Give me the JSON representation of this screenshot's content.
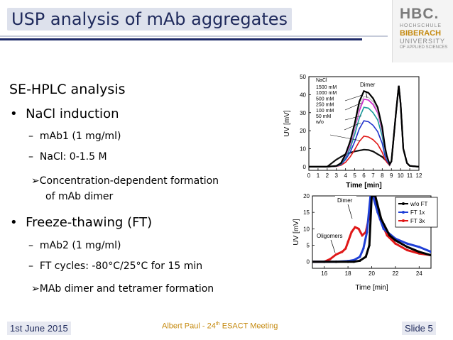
{
  "header": {
    "title": "USP analysis of mAb aggregates"
  },
  "logo": {
    "name": "HBC.",
    "line1": "HOCHSCHULE",
    "line2": "BIBERACH",
    "line3": "UNIVERSITY",
    "line4": "OF APPLIED SCIENCES"
  },
  "content": {
    "heading": "SE-HPLC analysis",
    "bullet1": "NaCl induction",
    "b1_sub1": "mAb1 (1 mg/ml)",
    "b1_sub2": "NaCl: 0-1.5 M",
    "b1_res_l1": "Concentration-dependent formation",
    "b1_res_l2": "of mAb dimer",
    "bullet2": "Freeze-thawing (FT)",
    "b2_sub1": "mAb2 (1 mg/ml)",
    "b2_sub2": "FT cycles: -80°C/25°C for 15 min",
    "b2_res": "MAb dimer and tetramer formation"
  },
  "footer": {
    "date": "1st June 2015",
    "presenter": "Albert Paul - 24",
    "presenter_sup": "th",
    "presenter_tail": " ESACT Meeting",
    "slide": "Slide 5"
  },
  "colors": {
    "title_navy": "#1f2a5c",
    "accent_gold": "#c58a10"
  },
  "chart_data": [
    {
      "type": "line",
      "xlabel": "Time [min]",
      "ylabel": "UV [mV]",
      "xlim": [
        0,
        12
      ],
      "ylim": [
        -2,
        50
      ],
      "xticks": [
        "0",
        "1",
        "2",
        "3",
        "4",
        "5",
        "6",
        "7",
        "8",
        "9",
        "10",
        "11",
        "12"
      ],
      "yticks": [
        "0",
        "10",
        "20",
        "30",
        "40",
        "50"
      ],
      "legend_title": "NaCl",
      "annotation": "Dimer",
      "series": [
        {
          "name": "1500 mM",
          "color": "#000000",
          "x": [
            0,
            1,
            2,
            3,
            3.5,
            4,
            4.5,
            5,
            5.5,
            6,
            6.5,
            7,
            7.5,
            8,
            8.3,
            8.5,
            8.8,
            9,
            9.5,
            9.8,
            10,
            10.3,
            10.7,
            11,
            12
          ],
          "y": [
            0,
            0,
            0,
            0.5,
            2,
            7,
            14,
            24,
            36,
            42,
            41,
            38,
            33,
            22,
            11,
            6,
            1.5,
            3,
            30,
            45,
            35,
            10,
            2,
            0.5,
            0
          ]
        },
        {
          "name": "1000 mM",
          "color": "#c8c8c8",
          "x": [
            0,
            1,
            2,
            3,
            3.5,
            4,
            4.5,
            5,
            5.5,
            6,
            6.5,
            7,
            7.5,
            8,
            8.3,
            8.5,
            8.8,
            9,
            9.5,
            9.8,
            10,
            10.3,
            10.7,
            11,
            12
          ],
          "y": [
            0,
            0,
            0,
            0.4,
            2,
            6.5,
            13,
            22,
            33,
            39,
            38.5,
            36,
            31,
            21,
            10,
            5.5,
            1.5,
            3,
            30,
            45,
            35,
            10,
            2,
            0.5,
            0
          ]
        },
        {
          "name": "500 mM",
          "color": "#cc22cc",
          "x": [
            0,
            1,
            2,
            3,
            3.5,
            4,
            4.5,
            5,
            5.5,
            6,
            6.5,
            7,
            7.5,
            8,
            8.3,
            8.5,
            8.8,
            9,
            9.5,
            9.8,
            10,
            10.3,
            10.7,
            11,
            12
          ],
          "y": [
            0,
            0,
            0,
            0.4,
            2,
            6,
            12,
            21,
            31,
            37.5,
            37,
            34.5,
            30,
            20,
            9.5,
            5,
            1.5,
            3,
            30,
            45,
            35,
            10,
            2,
            0.5,
            0
          ]
        },
        {
          "name": "250 mM",
          "color": "#1a9a9a",
          "x": [
            0,
            1,
            2,
            3,
            3.5,
            4,
            4.5,
            5,
            5.5,
            6,
            6.5,
            7,
            7.5,
            8,
            8.3,
            8.5,
            8.8,
            9,
            9.5,
            9.8,
            10,
            10.3,
            10.7,
            11,
            12
          ],
          "y": [
            0,
            0,
            0,
            0.3,
            1.5,
            5,
            10,
            18,
            27,
            33,
            32.5,
            30,
            26,
            17,
            8,
            4.5,
            1.2,
            3,
            30,
            45,
            35,
            10,
            2,
            0.5,
            0
          ]
        },
        {
          "name": "100 mM",
          "color": "#2233cc",
          "x": [
            0,
            1,
            2,
            3,
            3.5,
            4,
            4.5,
            5,
            5.5,
            6,
            6.5,
            7,
            7.5,
            8,
            8.3,
            8.5,
            8.8,
            9,
            9.5,
            9.8,
            10,
            10.3,
            10.7,
            11,
            12
          ],
          "y": [
            0,
            0,
            0,
            0.3,
            1.2,
            4,
            8,
            14,
            21,
            25.5,
            25,
            23,
            19.5,
            13,
            6,
            3.5,
            1,
            3,
            30,
            45,
            35,
            10,
            2,
            0.5,
            0
          ]
        },
        {
          "name": "50 mM",
          "color": "#e01818",
          "x": [
            0,
            1,
            2,
            3,
            3.5,
            4,
            4.5,
            5,
            5.5,
            6,
            6.5,
            7,
            7.5,
            8,
            8.3,
            8.5,
            8.8,
            9,
            9.5,
            9.8,
            10,
            10.3,
            10.7,
            11,
            12
          ],
          "y": [
            0,
            0,
            0,
            0.2,
            0.8,
            2.5,
            5.5,
            9.5,
            14,
            17,
            16.5,
            15,
            12.5,
            8,
            4,
            2.5,
            0.8,
            3,
            30,
            45,
            35,
            10,
            2,
            0.5,
            0
          ]
        },
        {
          "name": "w/o",
          "color": "#111111",
          "x": [
            0,
            1,
            2,
            3,
            4,
            5,
            5.5,
            6,
            6.5,
            7,
            7.5,
            8,
            8.5,
            8.8,
            9,
            9.5,
            9.8,
            10,
            10.3,
            10.7,
            11,
            12
          ],
          "y": [
            0,
            0,
            0,
            4,
            7,
            8.5,
            9,
            9.5,
            9.3,
            8.5,
            7,
            5.5,
            3,
            1,
            3,
            30,
            45,
            35,
            10,
            2,
            0.5,
            0
          ]
        }
      ]
    },
    {
      "type": "line",
      "xlabel": "Time [min]",
      "ylabel": "UV [mV]",
      "xlim": [
        15,
        25
      ],
      "ylim": [
        -2,
        20
      ],
      "xticks": [
        "16",
        "18",
        "20",
        "22",
        "24"
      ],
      "yticks": [
        "0",
        "5",
        "10",
        "15",
        "20"
      ],
      "annotations": [
        "Dimer",
        "Oligomers"
      ],
      "series": [
        {
          "name": "w/o FT",
          "color": "#000000",
          "x": [
            15,
            16,
            17,
            18,
            18.5,
            19,
            19.5,
            19.8,
            20,
            20.3,
            20.8,
            21.5,
            22,
            23,
            24,
            25
          ],
          "y": [
            0,
            0,
            0,
            0,
            0,
            0.3,
            1.5,
            5,
            20,
            20,
            13,
            8,
            6.5,
            4.5,
            3,
            2
          ]
        },
        {
          "name": "FT 1x",
          "color": "#1f3fd6",
          "x": [
            15,
            16,
            17,
            18,
            18.5,
            19,
            19.3,
            19.6,
            19.9,
            20.1,
            20.5,
            21,
            22,
            23,
            24,
            25
          ],
          "y": [
            0,
            0,
            0,
            0.2,
            0.5,
            1.5,
            4,
            9,
            20,
            20,
            15,
            10,
            7,
            5.5,
            4.5,
            3
          ]
        },
        {
          "name": "FT 3x",
          "color": "#e01818",
          "x": [
            15,
            16,
            16.5,
            17,
            17.5,
            17.8,
            18,
            18.3,
            18.6,
            18.9,
            19.2,
            19.5,
            19.8,
            20,
            20.3,
            20.7,
            21.3,
            22,
            23,
            24,
            25
          ],
          "y": [
            0,
            0,
            0.8,
            2.2,
            3,
            4,
            6,
            9,
            10.5,
            10,
            8,
            9,
            14,
            20,
            20,
            13,
            8,
            5.5,
            3.5,
            2.5,
            2
          ]
        }
      ]
    }
  ]
}
